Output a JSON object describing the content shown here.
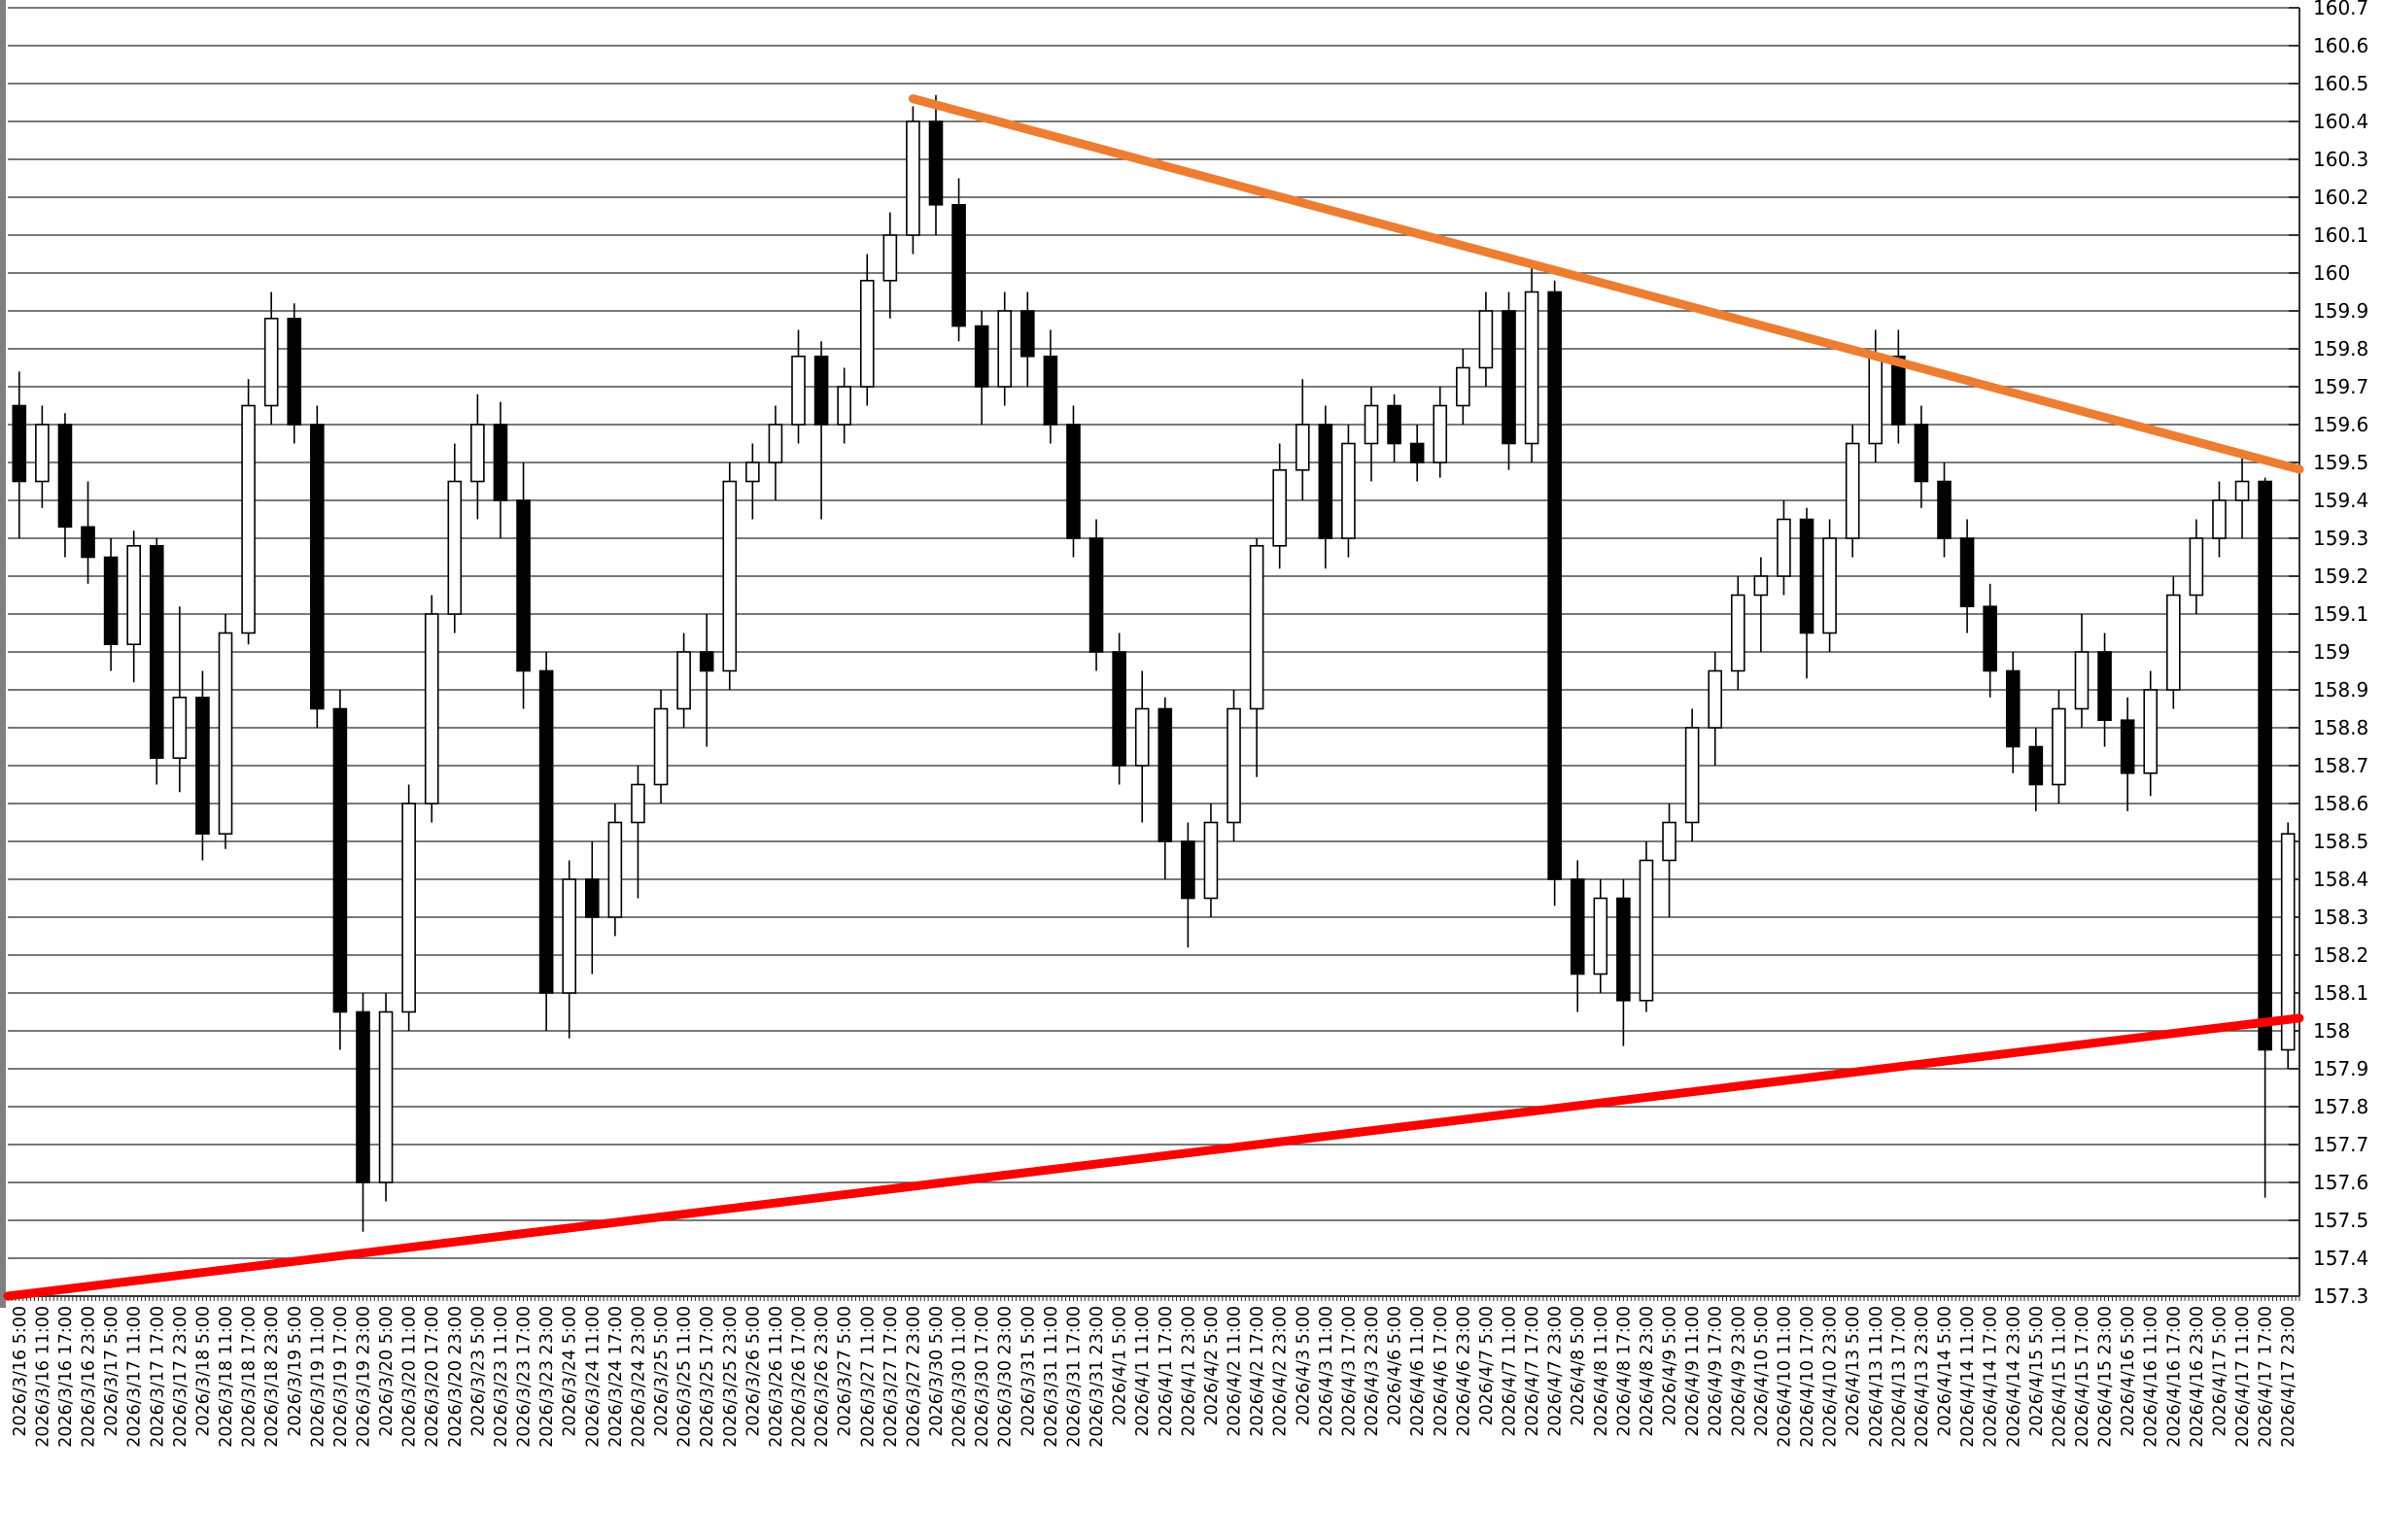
{
  "chart_data": {
    "type": "candlestick",
    "title": "",
    "xlabel": "",
    "ylabel": "",
    "legend": "none",
    "grid": "horizontal",
    "candle_interval": "6 hours",
    "colors": {
      "up_fill": "#ffffff",
      "down_fill": "#000000",
      "candle_stroke": "#000000",
      "gridline": "#4d4d4d",
      "axis": "#333333",
      "left_border": "#808080",
      "resistance_line": "#ED7D31",
      "support_line": "#FF0000",
      "background": "#ffffff"
    },
    "y_axis": {
      "side": "right",
      "min": 157.3,
      "max": 160.7,
      "tick_step": 0.1,
      "labels": [
        "160.7",
        "160.6",
        "160.5",
        "160.4",
        "160.3",
        "160.2",
        "160.1",
        "160",
        "159.9",
        "159.8",
        "159.7",
        "159.6",
        "159.5",
        "159.4",
        "159.3",
        "159.2",
        "159.1",
        "159",
        "158.9",
        "158.8",
        "158.7",
        "158.6",
        "158.5",
        "158.4",
        "158.3",
        "158.2",
        "158.1",
        "158",
        "157.9",
        "157.8",
        "157.7",
        "157.6",
        "157.5",
        "157.4",
        "157.3"
      ]
    },
    "x_labels": [
      "2026/3/16 5:00",
      "2026/3/16 11:00",
      "2026/3/16 17:00",
      "2026/3/16 23:00",
      "2026/3/17 5:00",
      "2026/3/17 11:00",
      "2026/3/17 17:00",
      "2026/3/17 23:00",
      "2026/3/18 5:00",
      "2026/3/18 11:00",
      "2026/3/18 17:00",
      "2026/3/18 23:00",
      "2026/3/19 5:00",
      "2026/3/19 11:00",
      "2026/3/19 17:00",
      "2026/3/19 23:00",
      "2026/3/20 5:00",
      "2026/3/20 11:00",
      "2026/3/20 17:00",
      "2026/3/20 23:00",
      "2026/3/23 5:00",
      "2026/3/23 11:00",
      "2026/3/23 17:00",
      "2026/3/23 23:00",
      "2026/3/24 5:00",
      "2026/3/24 11:00",
      "2026/3/24 17:00",
      "2026/3/24 23:00",
      "2026/3/25 5:00",
      "2026/3/25 11:00",
      "2026/3/25 17:00",
      "2026/3/25 23:00",
      "2026/3/26 5:00",
      "2026/3/26 11:00",
      "2026/3/26 17:00",
      "2026/3/26 23:00",
      "2026/3/27 5:00",
      "2026/3/27 11:00",
      "2026/3/27 17:00",
      "2026/3/27 23:00",
      "2026/3/30 5:00",
      "2026/3/30 11:00",
      "2026/3/30 17:00",
      "2026/3/30 23:00",
      "2026/3/31 5:00",
      "2026/3/31 11:00",
      "2026/3/31 17:00",
      "2026/3/31 23:00",
      "2026/4/1 5:00",
      "2026/4/1 11:00",
      "2026/4/1 17:00",
      "2026/4/1 23:00",
      "2026/4/2 5:00",
      "2026/4/2 11:00",
      "2026/4/2 17:00",
      "2026/4/2 23:00",
      "2026/4/3 5:00",
      "2026/4/3 11:00",
      "2026/4/3 17:00",
      "2026/4/3 23:00",
      "2026/4/6 5:00",
      "2026/4/6 11:00",
      "2026/4/6 17:00",
      "2026/4/6 23:00",
      "2026/4/7 5:00",
      "2026/4/7 11:00",
      "2026/4/7 17:00",
      "2026/4/7 23:00",
      "2026/4/8 5:00",
      "2026/4/8 11:00",
      "2026/4/8 17:00",
      "2026/4/8 23:00",
      "2026/4/9 5:00",
      "2026/4/9 11:00",
      "2026/4/9 17:00",
      "2026/4/9 23:00",
      "2026/4/10 5:00",
      "2026/4/10 11:00",
      "2026/4/10 17:00",
      "2026/4/10 23:00",
      "2026/4/13 5:00",
      "2026/4/13 11:00",
      "2026/4/13 17:00",
      "2026/4/13 23:00",
      "2026/4/14 5:00",
      "2026/4/14 11:00",
      "2026/4/14 17:00",
      "2026/4/14 23:00",
      "2026/4/15 5:00",
      "2026/4/15 11:00",
      "2026/4/15 17:00",
      "2026/4/15 23:00",
      "2026/4/16 5:00",
      "2026/4/16 11:00",
      "2026/4/16 17:00",
      "2026/4/16 23:00",
      "2026/4/17 5:00",
      "2026/4/17 11:00",
      "2026/4/17 17:00",
      "2026/4/17 23:00"
    ],
    "candles_ohlc": [
      [
        159.65,
        159.74,
        159.3,
        159.45
      ],
      [
        159.45,
        159.65,
        159.38,
        159.6
      ],
      [
        159.6,
        159.63,
        159.25,
        159.33
      ],
      [
        159.33,
        159.45,
        159.18,
        159.25
      ],
      [
        159.25,
        159.3,
        158.95,
        159.02
      ],
      [
        159.02,
        159.32,
        158.92,
        159.28
      ],
      [
        159.28,
        159.3,
        158.65,
        158.72
      ],
      [
        158.72,
        159.12,
        158.63,
        158.88
      ],
      [
        158.88,
        158.95,
        158.45,
        158.52
      ],
      [
        158.52,
        159.1,
        158.48,
        159.05
      ],
      [
        159.05,
        159.72,
        159.02,
        159.65
      ],
      [
        159.65,
        159.95,
        159.6,
        159.88
      ],
      [
        159.88,
        159.92,
        159.55,
        159.6
      ],
      [
        159.6,
        159.65,
        158.8,
        158.85
      ],
      [
        158.85,
        158.9,
        157.95,
        158.05
      ],
      [
        158.05,
        158.1,
        157.47,
        157.6
      ],
      [
        157.6,
        158.1,
        157.55,
        158.05
      ],
      [
        158.05,
        158.65,
        158.0,
        158.6
      ],
      [
        158.6,
        159.15,
        158.55,
        159.1
      ],
      [
        159.1,
        159.55,
        159.05,
        159.45
      ],
      [
        159.45,
        159.68,
        159.35,
        159.6
      ],
      [
        159.6,
        159.66,
        159.3,
        159.4
      ],
      [
        159.4,
        159.5,
        158.85,
        158.95
      ],
      [
        158.95,
        159.0,
        158.0,
        158.1
      ],
      [
        158.1,
        158.45,
        157.98,
        158.4
      ],
      [
        158.4,
        158.5,
        158.15,
        158.3
      ],
      [
        158.3,
        158.6,
        158.25,
        158.55
      ],
      [
        158.55,
        158.7,
        158.35,
        158.65
      ],
      [
        158.65,
        158.9,
        158.6,
        158.85
      ],
      [
        158.85,
        159.05,
        158.8,
        159.0
      ],
      [
        159.0,
        159.1,
        158.75,
        158.95
      ],
      [
        158.95,
        159.5,
        158.9,
        159.45
      ],
      [
        159.45,
        159.55,
        159.35,
        159.5
      ],
      [
        159.5,
        159.65,
        159.4,
        159.6
      ],
      [
        159.6,
        159.85,
        159.55,
        159.78
      ],
      [
        159.78,
        159.82,
        159.35,
        159.6
      ],
      [
        159.6,
        159.75,
        159.55,
        159.7
      ],
      [
        159.7,
        160.05,
        159.65,
        159.98
      ],
      [
        159.98,
        160.16,
        159.88,
        160.1
      ],
      [
        160.1,
        160.44,
        160.05,
        160.4
      ],
      [
        160.4,
        160.47,
        160.1,
        160.18
      ],
      [
        160.18,
        160.25,
        159.82,
        159.86
      ],
      [
        159.86,
        159.9,
        159.6,
        159.7
      ],
      [
        159.7,
        159.95,
        159.65,
        159.9
      ],
      [
        159.9,
        159.95,
        159.7,
        159.78
      ],
      [
        159.78,
        159.85,
        159.55,
        159.6
      ],
      [
        159.6,
        159.65,
        159.25,
        159.3
      ],
      [
        159.3,
        159.35,
        158.95,
        159.0
      ],
      [
        159.0,
        159.05,
        158.65,
        158.7
      ],
      [
        158.7,
        158.95,
        158.55,
        158.85
      ],
      [
        158.85,
        158.88,
        158.4,
        158.5
      ],
      [
        158.5,
        158.55,
        158.22,
        158.35
      ],
      [
        158.35,
        158.6,
        158.3,
        158.55
      ],
      [
        158.55,
        158.9,
        158.5,
        158.85
      ],
      [
        158.85,
        159.3,
        158.67,
        159.28
      ],
      [
        159.28,
        159.55,
        159.22,
        159.48
      ],
      [
        159.48,
        159.72,
        159.4,
        159.6
      ],
      [
        159.6,
        159.65,
        159.22,
        159.3
      ],
      [
        159.3,
        159.6,
        159.25,
        159.55
      ],
      [
        159.55,
        159.7,
        159.45,
        159.65
      ],
      [
        159.65,
        159.68,
        159.5,
        159.55
      ],
      [
        159.55,
        159.6,
        159.45,
        159.5
      ],
      [
        159.5,
        159.7,
        159.46,
        159.65
      ],
      [
        159.65,
        159.8,
        159.6,
        159.75
      ],
      [
        159.75,
        159.95,
        159.7,
        159.9
      ],
      [
        159.9,
        159.95,
        159.48,
        159.55
      ],
      [
        159.55,
        160.03,
        159.5,
        159.95
      ],
      [
        159.95,
        159.98,
        158.33,
        158.4
      ],
      [
        158.4,
        158.45,
        158.05,
        158.15
      ],
      [
        158.15,
        158.4,
        158.1,
        158.35
      ],
      [
        158.35,
        158.4,
        157.96,
        158.08
      ],
      [
        158.08,
        158.5,
        158.05,
        158.45
      ],
      [
        158.45,
        158.6,
        158.3,
        158.55
      ],
      [
        158.55,
        158.85,
        158.5,
        158.8
      ],
      [
        158.8,
        159.0,
        158.7,
        158.95
      ],
      [
        158.95,
        159.2,
        158.9,
        159.15
      ],
      [
        159.15,
        159.25,
        159.0,
        159.2
      ],
      [
        159.2,
        159.4,
        159.15,
        159.35
      ],
      [
        159.35,
        159.38,
        158.93,
        159.05
      ],
      [
        159.05,
        159.35,
        159.0,
        159.3
      ],
      [
        159.3,
        159.6,
        159.25,
        159.55
      ],
      [
        159.55,
        159.85,
        159.5,
        159.78
      ],
      [
        159.78,
        159.85,
        159.55,
        159.6
      ],
      [
        159.6,
        159.65,
        159.38,
        159.45
      ],
      [
        159.45,
        159.5,
        159.25,
        159.3
      ],
      [
        159.3,
        159.35,
        159.05,
        159.12
      ],
      [
        159.12,
        159.18,
        158.88,
        158.95
      ],
      [
        158.95,
        159.0,
        158.68,
        158.75
      ],
      [
        158.75,
        158.8,
        158.58,
        158.65
      ],
      [
        158.65,
        158.9,
        158.6,
        158.85
      ],
      [
        158.85,
        159.1,
        158.8,
        159.0
      ],
      [
        159.0,
        159.05,
        158.75,
        158.82
      ],
      [
        158.82,
        158.88,
        158.58,
        158.68
      ],
      [
        158.68,
        158.95,
        158.62,
        158.9
      ],
      [
        158.9,
        159.2,
        158.85,
        159.15
      ],
      [
        159.15,
        159.35,
        159.1,
        159.3
      ],
      [
        159.3,
        159.45,
        159.25,
        159.4
      ],
      [
        159.4,
        159.53,
        159.3,
        159.45
      ],
      [
        159.45,
        159.46,
        157.56,
        157.95
      ],
      [
        157.95,
        158.55,
        157.9,
        158.52
      ]
    ],
    "trendlines": [
      {
        "name": "descending-resistance",
        "color": "#ED7D31",
        "from": {
          "x_label": "2026/3/27 23:00",
          "price": 160.46
        },
        "to": {
          "x_label": "2026/4/17 23:00",
          "price": 159.49
        },
        "extends_to_right_edge": true,
        "touches": [
          "2026/3/27 23:00 high 160.44",
          "2026/4/7 17:00 high 160.03",
          "2026/4/13 11:00 high 159.85",
          "2026/4/17 11:00 high 159.53"
        ]
      },
      {
        "name": "ascending-support",
        "color": "#FF0000",
        "from": {
          "x_label": "2026/3/16 5:00",
          "price": 157.3
        },
        "to": {
          "x_label": "2026/4/17 23:00",
          "price": 158.03
        },
        "touches": [
          "2026/3/19 23:00 low 157.47",
          "2026/4/8 17:00 low 157.96",
          "2026/4/17 17:00 low pierced 157.56"
        ]
      }
    ]
  }
}
